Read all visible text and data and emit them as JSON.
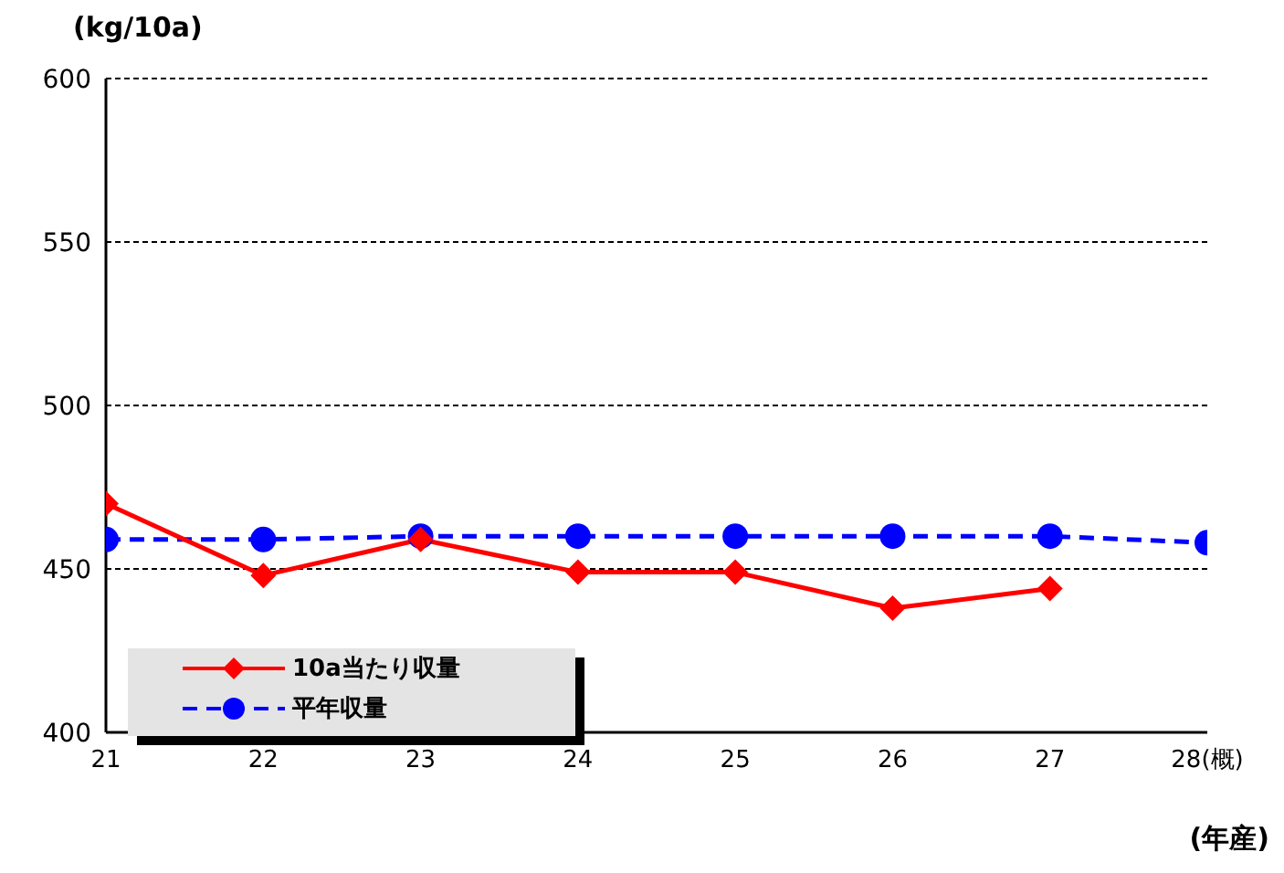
{
  "chart_data": {
    "type": "line",
    "ylabel": "(kg/10a)",
    "xlabel": "(年産)",
    "categories": [
      "21",
      "22",
      "23",
      "24",
      "25",
      "26",
      "27",
      "28(概)"
    ],
    "series": [
      {
        "name": "10a当たり収量",
        "color": "#ff0000",
        "values": [
          470,
          448,
          459,
          449,
          449,
          438,
          444,
          null
        ],
        "marker": "diamond",
        "line_style": "solid"
      },
      {
        "name": "平年収量",
        "color": "#0000ff",
        "values": [
          459,
          459,
          460,
          460,
          460,
          460,
          460,
          458
        ],
        "marker": "circle",
        "line_style": "dashed"
      }
    ],
    "ylim": [
      400,
      600
    ],
    "yticks": [
      400,
      450,
      500,
      550,
      600
    ],
    "grid": "y",
    "legend": "bottom left"
  }
}
